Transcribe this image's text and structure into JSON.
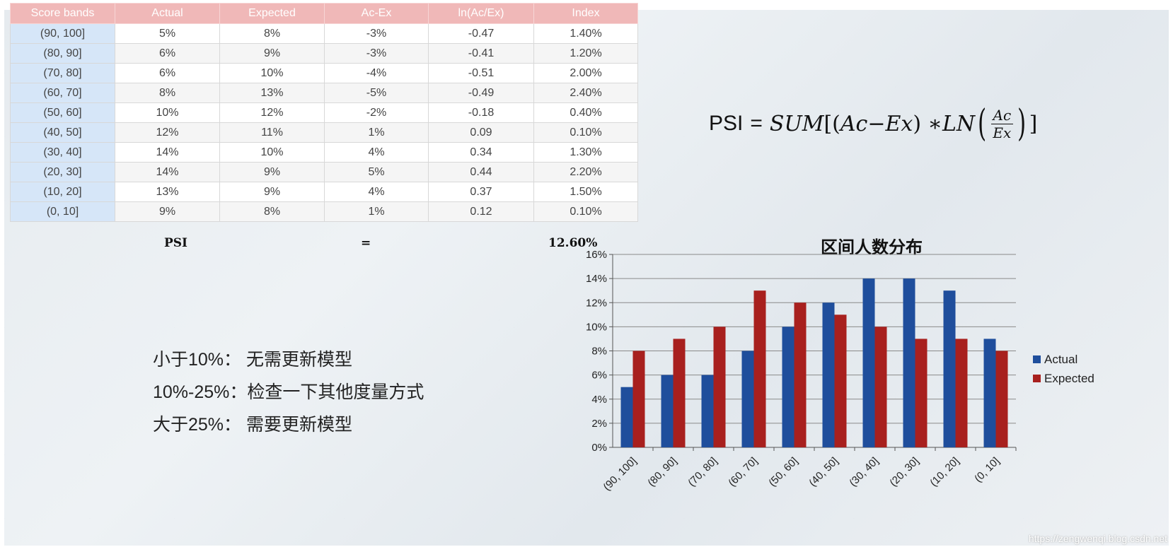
{
  "table": {
    "headers": [
      "Score bands",
      "Actual",
      "Expected",
      "Ac-Ex",
      "ln(Ac/Ex)",
      "Index"
    ],
    "rows": [
      [
        "(90, 100]",
        "5%",
        "8%",
        "-3%",
        "-0.47",
        "1.40%"
      ],
      [
        "(80, 90]",
        "6%",
        "9%",
        "-3%",
        "-0.41",
        "1.20%"
      ],
      [
        "(70, 80]",
        "6%",
        "10%",
        "-4%",
        "-0.51",
        "2.00%"
      ],
      [
        "(60, 70]",
        "8%",
        "13%",
        "-5%",
        "-0.49",
        "2.40%"
      ],
      [
        "(50, 60]",
        "10%",
        "12%",
        "-2%",
        "-0.18",
        "0.40%"
      ],
      [
        "(40, 50]",
        "12%",
        "11%",
        "1%",
        "0.09",
        "0.10%"
      ],
      [
        "(30, 40]",
        "14%",
        "10%",
        "4%",
        "0.34",
        "1.30%"
      ],
      [
        "(20, 30]",
        "14%",
        "9%",
        "5%",
        "0.44",
        "2.20%"
      ],
      [
        "(10, 20]",
        "13%",
        "9%",
        "4%",
        "0.37",
        "1.50%"
      ],
      [
        "(0, 10]",
        "9%",
        "8%",
        "1%",
        "0.12",
        "0.10%"
      ]
    ],
    "psi_label": "PSI",
    "equals": "=",
    "psi_value": "12.60%"
  },
  "formula": {
    "lhs": "PSI",
    "eq": "=",
    "sum": "SUM",
    "open": "[(",
    "ac": "Ac",
    "minus": " − ",
    "ex": "Ex",
    "close_mul": ") ∗ ",
    "ln": "LN",
    "close": "]"
  },
  "rules": [
    "小于10%：  无需更新模型",
    "10%-25%：检查一下其他度量方式",
    "大于25%：  需要更新模型"
  ],
  "watermark": "https://zengwenqi.blog.csdn.net",
  "colors": {
    "actual": "#1f4e9c",
    "expected": "#a8201e",
    "header": "#f0b8b8",
    "band": "#d6e6f8"
  },
  "chart_data": {
    "type": "bar",
    "title": "区间人数分布",
    "categories": [
      "(90, 100]",
      "(80, 90]",
      "(70, 80]",
      "(60, 70]",
      "(50, 60]",
      "(40, 50]",
      "(30, 40]",
      "(20, 30]",
      "(10, 20]",
      "(0, 10]"
    ],
    "series": [
      {
        "name": "Actual",
        "values": [
          5,
          6,
          6,
          8,
          10,
          12,
          14,
          14,
          13,
          9
        ]
      },
      {
        "name": "Expected",
        "values": [
          8,
          9,
          10,
          13,
          12,
          11,
          10,
          9,
          9,
          8
        ]
      }
    ],
    "ylim": [
      0,
      16
    ],
    "yticks": [
      "0%",
      "2%",
      "4%",
      "6%",
      "8%",
      "10%",
      "12%",
      "14%",
      "16%"
    ],
    "grid": true,
    "legend": "right"
  }
}
